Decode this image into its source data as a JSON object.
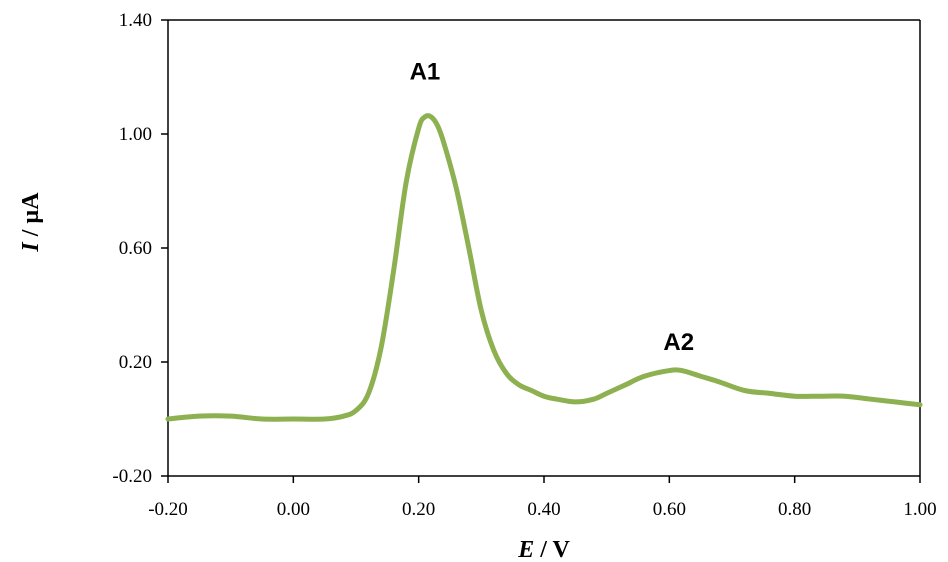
{
  "chart_data": {
    "type": "line",
    "xlabel": "E / V",
    "xlabel_parts": {
      "symbol": "E",
      "unit": " / V"
    },
    "ylabel": "I / µA",
    "ylabel_parts": {
      "symbol": "I",
      "unit": " / µA"
    },
    "xlim": [
      -0.2,
      1.0
    ],
    "ylim": [
      -0.2,
      1.4
    ],
    "xticks": [
      -0.2,
      0.0,
      0.2,
      0.4,
      0.6,
      0.8,
      1.0
    ],
    "xtick_labels": [
      "-0.20",
      "0.00",
      "0.20",
      "0.40",
      "0.60",
      "0.80",
      "1.00"
    ],
    "yticks": [
      -0.2,
      0.2,
      0.6,
      1.0,
      1.4
    ],
    "ytick_labels": [
      "-0.20",
      "0.20",
      "0.60",
      "1.00",
      "1.40"
    ],
    "grid": false,
    "line_color": "#8db051",
    "series": [
      {
        "x": [
          -0.2,
          -0.15,
          -0.1,
          -0.05,
          0.0,
          0.05,
          0.08,
          0.1,
          0.12,
          0.14,
          0.16,
          0.18,
          0.2,
          0.21,
          0.22,
          0.23,
          0.24,
          0.26,
          0.28,
          0.3,
          0.32,
          0.34,
          0.36,
          0.38,
          0.4,
          0.42,
          0.45,
          0.48,
          0.5,
          0.53,
          0.56,
          0.6,
          0.62,
          0.65,
          0.68,
          0.72,
          0.76,
          0.8,
          0.84,
          0.88,
          0.92,
          0.96,
          1.0
        ],
        "y": [
          0.0,
          0.01,
          0.01,
          0.0,
          0.0,
          0.0,
          0.01,
          0.03,
          0.09,
          0.25,
          0.52,
          0.83,
          1.02,
          1.06,
          1.06,
          1.03,
          0.97,
          0.81,
          0.6,
          0.38,
          0.24,
          0.16,
          0.12,
          0.1,
          0.08,
          0.07,
          0.06,
          0.07,
          0.09,
          0.12,
          0.15,
          0.17,
          0.17,
          0.15,
          0.13,
          0.1,
          0.09,
          0.08,
          0.08,
          0.08,
          0.07,
          0.06,
          0.05
        ]
      }
    ],
    "annotations": [
      {
        "text": "A1",
        "x": 0.21,
        "y": 1.22
      },
      {
        "text": "A2",
        "x": 0.615,
        "y": 0.27
      }
    ]
  }
}
